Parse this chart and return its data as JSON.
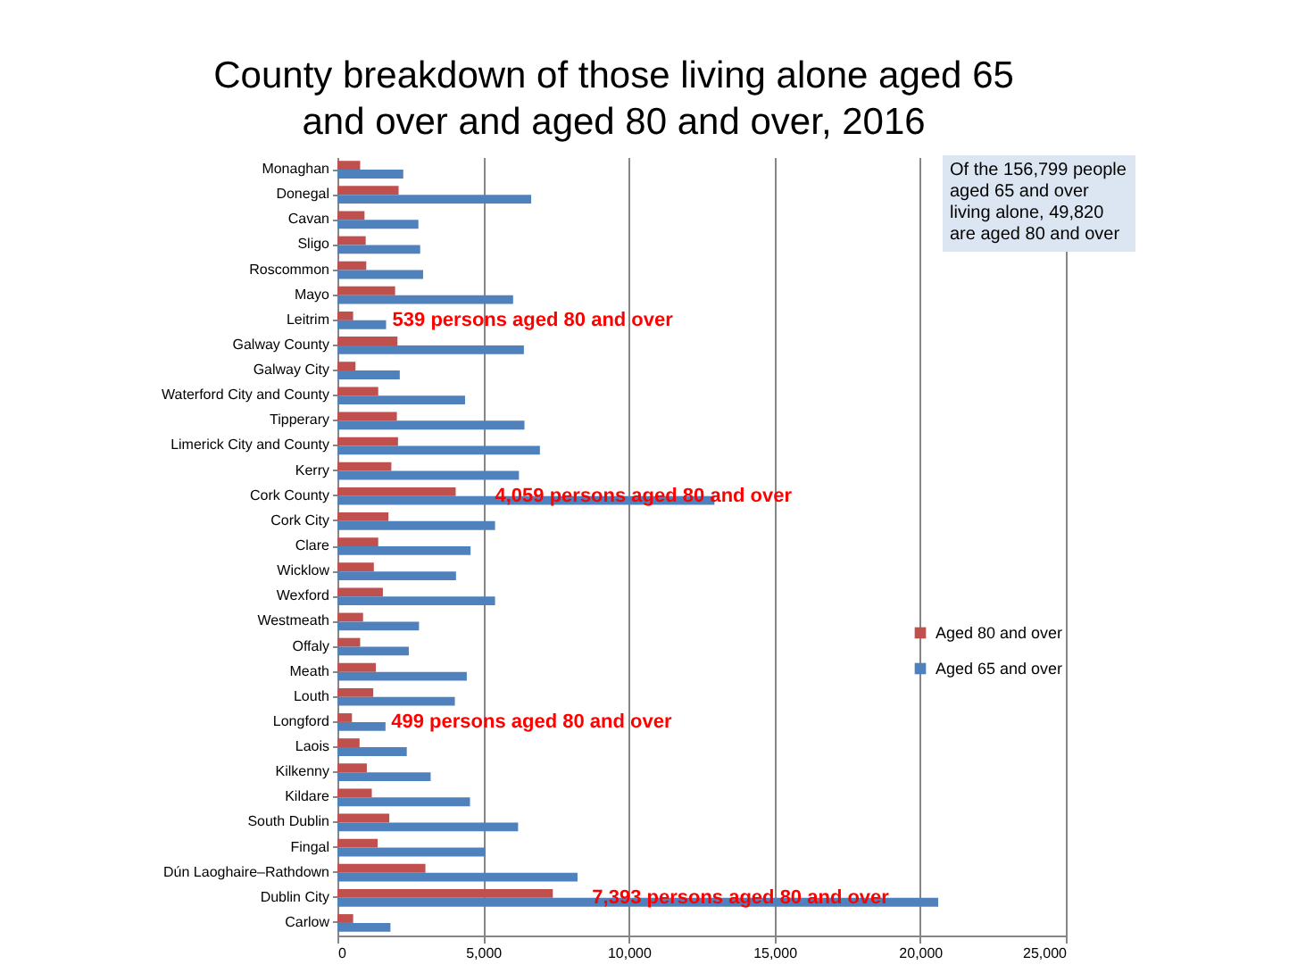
{
  "chart_data": {
    "type": "bar",
    "orientation": "horizontal",
    "title": "County breakdown of those living alone aged 65 and over and aged 80 and over, 2016",
    "categories": [
      "Monaghan",
      "Donegal",
      "Cavan",
      "Sligo",
      "Roscommon",
      "Mayo",
      "Leitrim",
      "Galway County",
      "Galway City",
      "Waterford City and County",
      "Tipperary",
      "Limerick City and County",
      "Kerry",
      "Cork County",
      "Cork City",
      "Clare",
      "Wicklow",
      "Wexford",
      "Westmeath",
      "Offaly",
      "Meath",
      "Louth",
      "Longford",
      "Laois",
      "Kilkenny",
      "Kildare",
      "South Dublin",
      "Fingal",
      "Dún Laoghaire–Rathdown",
      "Dublin City",
      "Carlow"
    ],
    "series": [
      {
        "name": "Aged 80 and over",
        "color": "#c0504d",
        "values": [
          780,
          2100,
          930,
          970,
          990,
          1980,
          539,
          2060,
          620,
          1400,
          2040,
          2080,
          1850,
          4059,
          1750,
          1400,
          1250,
          1560,
          880,
          780,
          1320,
          1230,
          499,
          760,
          1010,
          1180,
          1780,
          1380,
          3020,
          7393,
          540
        ]
      },
      {
        "name": "Aged 65 and over",
        "color": "#4f81bd",
        "values": [
          2260,
          6650,
          2780,
          2840,
          2940,
          6030,
          1670,
          6400,
          2140,
          4380,
          6420,
          6950,
          6230,
          12940,
          5410,
          4570,
          4070,
          5410,
          2800,
          2450,
          4440,
          4030,
          1650,
          2380,
          3200,
          4550,
          6200,
          5080,
          8240,
          20620,
          1820
        ]
      }
    ],
    "xlim": [
      0,
      25000
    ],
    "xticks": [
      0,
      {
        "value": 5000,
        "label": "5,000"
      },
      {
        "value": 10000,
        "label": "10,000"
      },
      {
        "value": 15000,
        "label": "15,000"
      },
      {
        "value": 20000,
        "label": "20,000"
      },
      {
        "value": 25000,
        "label": "25,000"
      }
    ],
    "grid": "x",
    "legend": "right",
    "annotations": [
      {
        "text": "539 persons aged 80 and over",
        "x": 539,
        "y": "Leitrim"
      },
      {
        "text": "4,059 persons aged 80 and over",
        "x": 4059,
        "y": "Cork County"
      },
      {
        "text": "499 persons aged 80 and over",
        "x": 499,
        "y": "Longford"
      },
      {
        "text": "7,393 persons aged 80 and over",
        "x": 7393,
        "y": "Dublin City"
      },
      "Of the 156,799 people aged 65 and over living alone, 49,820 are aged 80 and over"
    ]
  }
}
